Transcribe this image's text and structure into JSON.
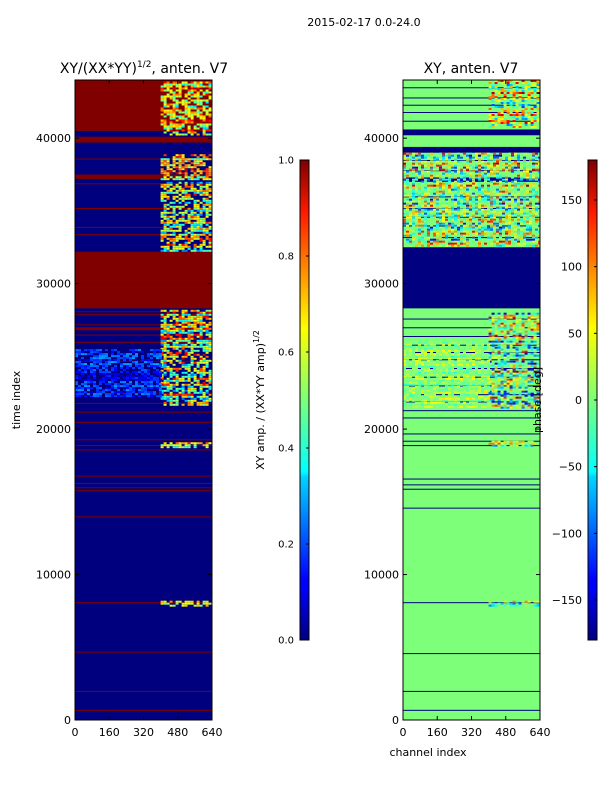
{
  "figure": {
    "suptitle": "2015-02-17 0.0-24.0"
  },
  "chart_data": [
    {
      "type": "heatmap",
      "title": "XY/(XX*YY)^1/2, anten. V7",
      "xlabel": "",
      "ylabel": "time index",
      "xlim": [
        0,
        640
      ],
      "ylim": [
        0,
        44000
      ],
      "x_ticks": [
        0,
        160,
        320,
        480,
        640
      ],
      "y_ticks": [
        0,
        10000,
        20000,
        30000,
        40000
      ],
      "colormap": "jet",
      "background_color": "#00007f",
      "colorbar": {
        "label": "XY amp. / (XX*YY amp)^1/2",
        "range": [
          0.0,
          1.0
        ],
        "ticks": [
          "0.0",
          "0.2",
          "0.4",
          "0.6",
          "0.8",
          "1.0"
        ]
      },
      "full_bands": [
        {
          "t0": 40500,
          "t1": 44000,
          "value": 1.0
        },
        {
          "t0": 39700,
          "t1": 40100,
          "value": 1.0
        },
        {
          "t0": 37200,
          "t1": 37500,
          "value": 1.0
        },
        {
          "t0": 30000,
          "t1": 32200,
          "value": 1.0
        },
        {
          "t0": 28300,
          "t1": 30000,
          "value": 1.0
        },
        {
          "t0": 26800,
          "t1": 27000,
          "value": 1.0
        }
      ],
      "thin_lines": [
        43000,
        42500,
        42000,
        41500,
        41000,
        38600,
        36900,
        35200,
        33900,
        33400,
        28100,
        27900,
        27200,
        26500,
        26000,
        24700,
        22500,
        21800,
        21200,
        20500,
        19300,
        18900,
        18600,
        16800,
        16300,
        16000,
        15800,
        14000,
        8100,
        4700,
        2000,
        700
      ],
      "noise_patches": [
        {
          "x0": 400,
          "x1": 640,
          "t0": 40300,
          "t1": 43900,
          "low": 0.3,
          "high": 1.0
        },
        {
          "x0": 400,
          "x1": 640,
          "t0": 37200,
          "t1": 38900,
          "low": 0.3,
          "high": 1.0
        },
        {
          "x0": 400,
          "x1": 640,
          "t0": 32300,
          "t1": 37000,
          "low": 0.2,
          "high": 0.9
        },
        {
          "x0": 400,
          "x1": 640,
          "t0": 21600,
          "t1": 28200,
          "low": 0.2,
          "high": 1.0
        },
        {
          "x0": 0,
          "x1": 400,
          "t0": 22300,
          "t1": 25500,
          "low": 0.05,
          "high": 0.3
        },
        {
          "x0": 400,
          "x1": 640,
          "t0": 18800,
          "t1": 19100,
          "low": 0.4,
          "high": 0.9
        },
        {
          "x0": 400,
          "x1": 640,
          "t0": 7900,
          "t1": 8200,
          "low": 0.4,
          "high": 0.9
        }
      ]
    },
    {
      "type": "heatmap",
      "title": "XY, anten. V7",
      "xlabel": "channel index",
      "ylabel": "",
      "xlim": [
        0,
        640
      ],
      "ylim": [
        0,
        44000
      ],
      "x_ticks": [
        0,
        160,
        320,
        480,
        640
      ],
      "y_ticks": [
        0,
        10000,
        20000,
        30000,
        40000
      ],
      "colormap": "jet",
      "background_color": "#7dff7a",
      "colorbar": {
        "label": "phase [deg]",
        "range": [
          -180,
          180
        ],
        "ticks": [
          "150",
          "100",
          "50",
          "0",
          "−50",
          "−100",
          "−150"
        ],
        "tick_values": [
          150,
          100,
          50,
          0,
          -50,
          -100,
          -150
        ]
      },
      "full_bands": [
        {
          "t0": 28300,
          "t1": 32500,
          "value": -180
        },
        {
          "t0": 40200,
          "t1": 40600,
          "value": -180
        },
        {
          "t0": 39000,
          "t1": 39400,
          "value": -180
        },
        {
          "t0": 37000,
          "t1": 37300,
          "value": -180
        }
      ],
      "thin_lines": [
        43500,
        42800,
        42300,
        41800,
        41200,
        38500,
        37800,
        36000,
        35200,
        34600,
        34000,
        33200,
        27600,
        27000,
        26400,
        25800,
        25300,
        24800,
        24200,
        23600,
        23000,
        22400,
        21900,
        21300,
        20800,
        19700,
        19200,
        18900,
        16600,
        16200,
        15900,
        14600,
        8100,
        4600,
        2000,
        700
      ],
      "noise_patches": [
        {
          "x0": 0,
          "x1": 640,
          "t0": 32600,
          "t1": 39000,
          "low": -180,
          "high": 180
        },
        {
          "x0": 400,
          "x1": 640,
          "t0": 40700,
          "t1": 44000,
          "low": -120,
          "high": 180
        },
        {
          "x0": 400,
          "x1": 640,
          "t0": 21500,
          "t1": 28000,
          "low": -180,
          "high": 180
        },
        {
          "x0": 0,
          "x1": 400,
          "t0": 21500,
          "t1": 26000,
          "low": -40,
          "high": 60
        },
        {
          "x0": 400,
          "x1": 640,
          "t0": 18800,
          "t1": 19200,
          "low": -120,
          "high": 120
        },
        {
          "x0": 400,
          "x1": 640,
          "t0": 7900,
          "t1": 8200,
          "low": -120,
          "high": 120
        }
      ]
    }
  ]
}
